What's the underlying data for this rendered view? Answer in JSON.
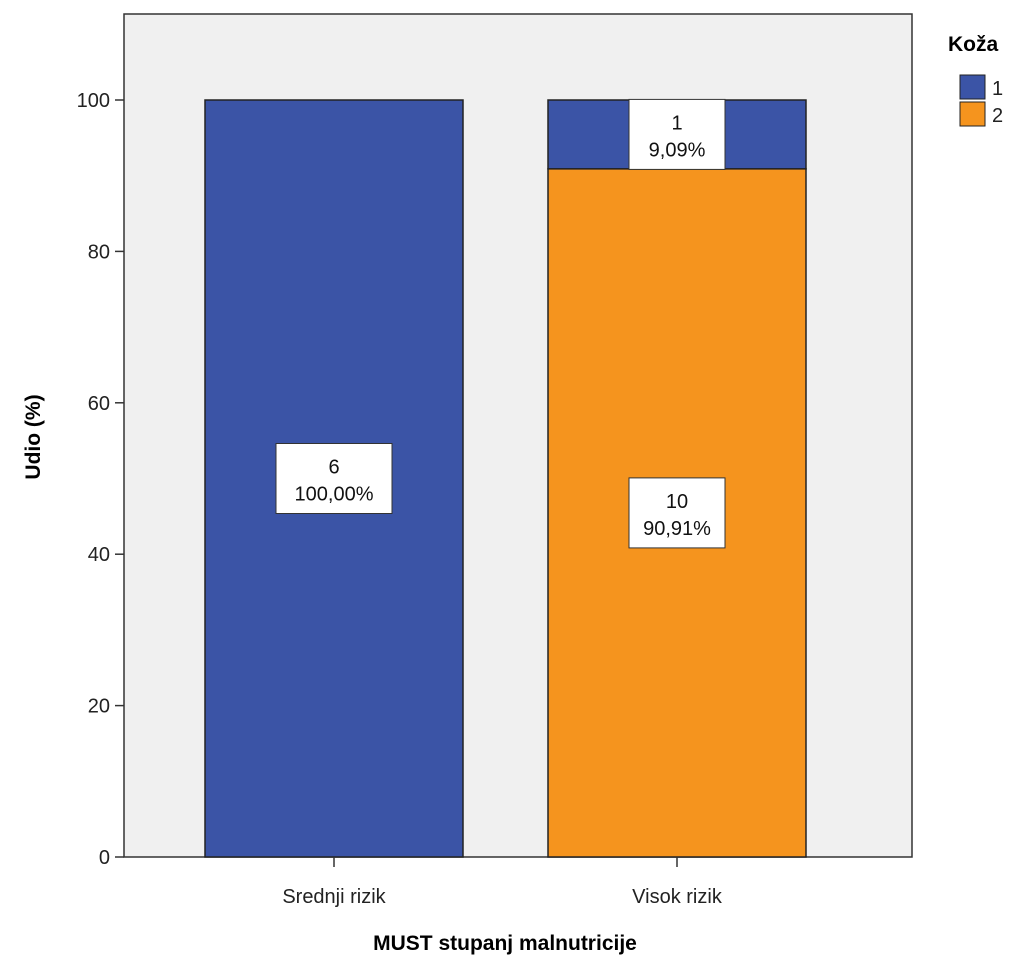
{
  "chart_data": {
    "type": "bar",
    "stacked": true,
    "categories": [
      "Srednji rizik",
      "Visok rizik"
    ],
    "series": [
      {
        "name": "1",
        "color": "#3b54a6",
        "values": [
          100.0,
          9.09
        ],
        "counts": [
          "6",
          "1"
        ],
        "percent_labels": [
          "100,00%",
          "9,09%"
        ]
      },
      {
        "name": "2",
        "color": "#f5941e",
        "values": [
          0,
          90.91
        ],
        "counts": [
          null,
          "10"
        ],
        "percent_labels": [
          null,
          "90,91%"
        ]
      }
    ],
    "stack_order": [
      "2",
      "1"
    ],
    "xlabel": "MUST stupanj malnutricije",
    "ylabel": "Udio (%)",
    "ylim": [
      0,
      110
    ],
    "yticks": [
      "0",
      "20",
      "40",
      "60",
      "80",
      "100"
    ],
    "legend_title": "Koža",
    "legend_position": "top-right",
    "plot_background": "#f0f0f0",
    "grid": false
  }
}
